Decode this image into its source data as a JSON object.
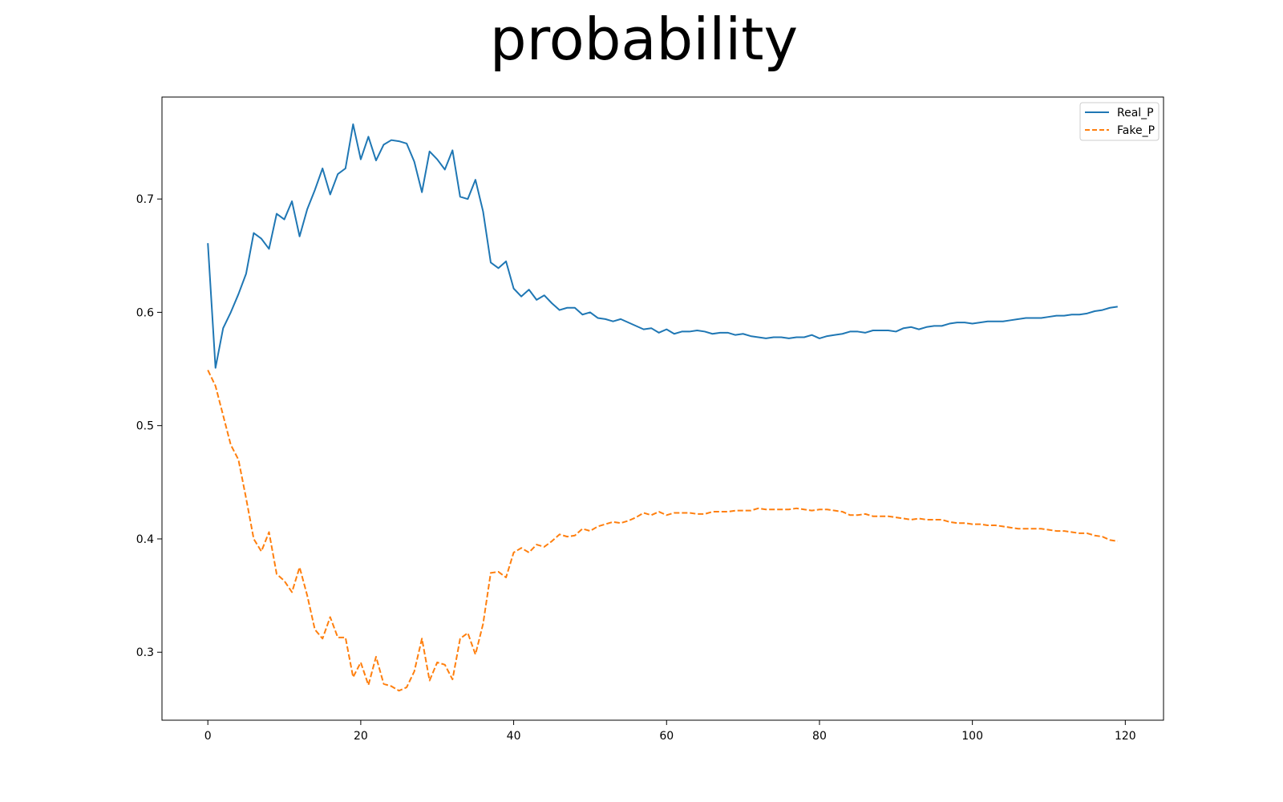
{
  "chart_data": {
    "type": "line",
    "title": "probability",
    "xlabel": "",
    "ylabel": "",
    "xlim": [
      -6,
      125
    ],
    "ylim": [
      0.24,
      0.79
    ],
    "xticks": [
      0,
      20,
      40,
      60,
      80,
      100,
      120
    ],
    "yticks": [
      0.3,
      0.4,
      0.5,
      0.6,
      0.7
    ],
    "grid": false,
    "legend_position": "top-right",
    "series": [
      {
        "name": "Real_P",
        "color": "#1f77b4",
        "style": "solid",
        "x": [
          0,
          1,
          2,
          3,
          4,
          5,
          6,
          7,
          8,
          9,
          10,
          11,
          12,
          13,
          14,
          15,
          16,
          17,
          18,
          19,
          20,
          21,
          22,
          23,
          24,
          25,
          26,
          27,
          28,
          29,
          30,
          31,
          32,
          33,
          34,
          35,
          36,
          37,
          38,
          39,
          40,
          41,
          42,
          43,
          44,
          45,
          46,
          47,
          48,
          49,
          50,
          51,
          52,
          53,
          54,
          55,
          56,
          57,
          58,
          59,
          60,
          61,
          62,
          63,
          64,
          65,
          66,
          67,
          68,
          69,
          70,
          71,
          72,
          73,
          74,
          75,
          76,
          77,
          78,
          79,
          80,
          81,
          82,
          83,
          84,
          85,
          86,
          87,
          88,
          89,
          90,
          91,
          92,
          93,
          94,
          95,
          96,
          97,
          98,
          99,
          100,
          101,
          102,
          103,
          104,
          105,
          106,
          107,
          108,
          109,
          110,
          111,
          112,
          113,
          114,
          115,
          116,
          117,
          118,
          119
        ],
        "values": [
          0.661,
          0.551,
          0.586,
          0.6,
          0.616,
          0.634,
          0.67,
          0.665,
          0.656,
          0.687,
          0.682,
          0.698,
          0.667,
          0.691,
          0.708,
          0.727,
          0.704,
          0.722,
          0.727,
          0.766,
          0.735,
          0.755,
          0.734,
          0.748,
          0.752,
          0.751,
          0.749,
          0.733,
          0.706,
          0.742,
          0.735,
          0.726,
          0.743,
          0.702,
          0.7,
          0.717,
          0.689,
          0.644,
          0.639,
          0.645,
          0.621,
          0.614,
          0.62,
          0.611,
          0.615,
          0.608,
          0.602,
          0.604,
          0.604,
          0.598,
          0.6,
          0.595,
          0.594,
          0.592,
          0.594,
          0.591,
          0.588,
          0.585,
          0.586,
          0.582,
          0.585,
          0.581,
          0.583,
          0.583,
          0.584,
          0.583,
          0.581,
          0.582,
          0.582,
          0.58,
          0.581,
          0.579,
          0.578,
          0.577,
          0.578,
          0.578,
          0.577,
          0.578,
          0.578,
          0.58,
          0.577,
          0.579,
          0.58,
          0.581,
          0.583,
          0.583,
          0.582,
          0.584,
          0.584,
          0.584,
          0.583,
          0.586,
          0.587,
          0.585,
          0.587,
          0.588,
          0.588,
          0.59,
          0.591,
          0.591,
          0.59,
          0.591,
          0.592,
          0.592,
          0.592,
          0.593,
          0.594,
          0.595,
          0.595,
          0.595,
          0.596,
          0.597,
          0.597,
          0.598,
          0.598,
          0.599,
          0.601,
          0.602,
          0.604,
          0.605
        ]
      },
      {
        "name": "Fake_P",
        "color": "#ff7f0e",
        "style": "dashed",
        "x": [
          0,
          1,
          2,
          3,
          4,
          5,
          6,
          7,
          8,
          9,
          10,
          11,
          12,
          13,
          14,
          15,
          16,
          17,
          18,
          19,
          20,
          21,
          22,
          23,
          24,
          25,
          26,
          27,
          28,
          29,
          30,
          31,
          32,
          33,
          34,
          35,
          36,
          37,
          38,
          39,
          40,
          41,
          42,
          43,
          44,
          45,
          46,
          47,
          48,
          49,
          50,
          51,
          52,
          53,
          54,
          55,
          56,
          57,
          58,
          59,
          60,
          61,
          62,
          63,
          64,
          65,
          66,
          67,
          68,
          69,
          70,
          71,
          72,
          73,
          74,
          75,
          76,
          77,
          78,
          79,
          80,
          81,
          82,
          83,
          84,
          85,
          86,
          87,
          88,
          89,
          90,
          91,
          92,
          93,
          94,
          95,
          96,
          97,
          98,
          99,
          100,
          101,
          102,
          103,
          104,
          105,
          106,
          107,
          108,
          109,
          110,
          111,
          112,
          113,
          114,
          115,
          116,
          117,
          118,
          119
        ],
        "values": [
          0.549,
          0.535,
          0.509,
          0.483,
          0.47,
          0.436,
          0.4,
          0.389,
          0.406,
          0.369,
          0.363,
          0.353,
          0.375,
          0.35,
          0.32,
          0.312,
          0.331,
          0.313,
          0.313,
          0.278,
          0.291,
          0.271,
          0.296,
          0.272,
          0.27,
          0.266,
          0.269,
          0.283,
          0.312,
          0.275,
          0.291,
          0.289,
          0.276,
          0.312,
          0.317,
          0.298,
          0.325,
          0.37,
          0.371,
          0.366,
          0.388,
          0.392,
          0.388,
          0.395,
          0.393,
          0.398,
          0.404,
          0.402,
          0.403,
          0.409,
          0.407,
          0.411,
          0.413,
          0.415,
          0.414,
          0.416,
          0.419,
          0.423,
          0.421,
          0.424,
          0.421,
          0.423,
          0.423,
          0.423,
          0.422,
          0.422,
          0.424,
          0.424,
          0.424,
          0.425,
          0.425,
          0.425,
          0.427,
          0.426,
          0.426,
          0.426,
          0.426,
          0.427,
          0.426,
          0.425,
          0.426,
          0.426,
          0.425,
          0.424,
          0.421,
          0.421,
          0.422,
          0.42,
          0.42,
          0.42,
          0.419,
          0.418,
          0.417,
          0.418,
          0.417,
          0.417,
          0.417,
          0.415,
          0.414,
          0.414,
          0.413,
          0.413,
          0.412,
          0.412,
          0.411,
          0.41,
          0.409,
          0.409,
          0.409,
          0.409,
          0.408,
          0.407,
          0.407,
          0.406,
          0.405,
          0.405,
          0.403,
          0.402,
          0.399,
          0.398
        ]
      }
    ]
  }
}
